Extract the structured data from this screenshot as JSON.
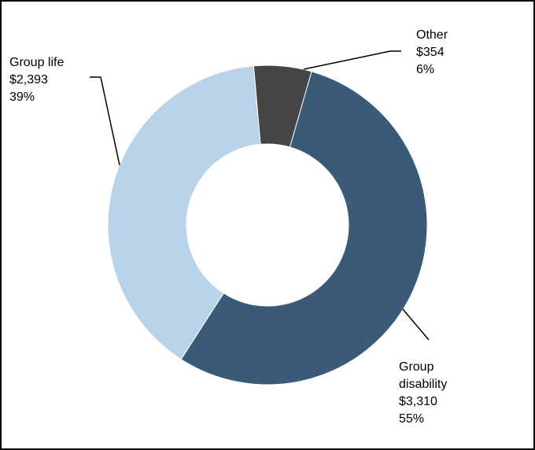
{
  "chart_data": {
    "type": "pie",
    "style": "donut",
    "slices": [
      {
        "name": "Other",
        "amount": "$354",
        "percent": "6%",
        "value": 354,
        "color": "#454545"
      },
      {
        "name": "Group disability",
        "amount": "$3,310",
        "percent": "55%",
        "value": 3310,
        "color": "#3b5a78"
      },
      {
        "name": "Group life",
        "amount": "$2,393",
        "percent": "39%",
        "value": 2393,
        "color": "#b9d4ea"
      }
    ],
    "disability_lines": [
      "Group",
      "disability"
    ]
  }
}
